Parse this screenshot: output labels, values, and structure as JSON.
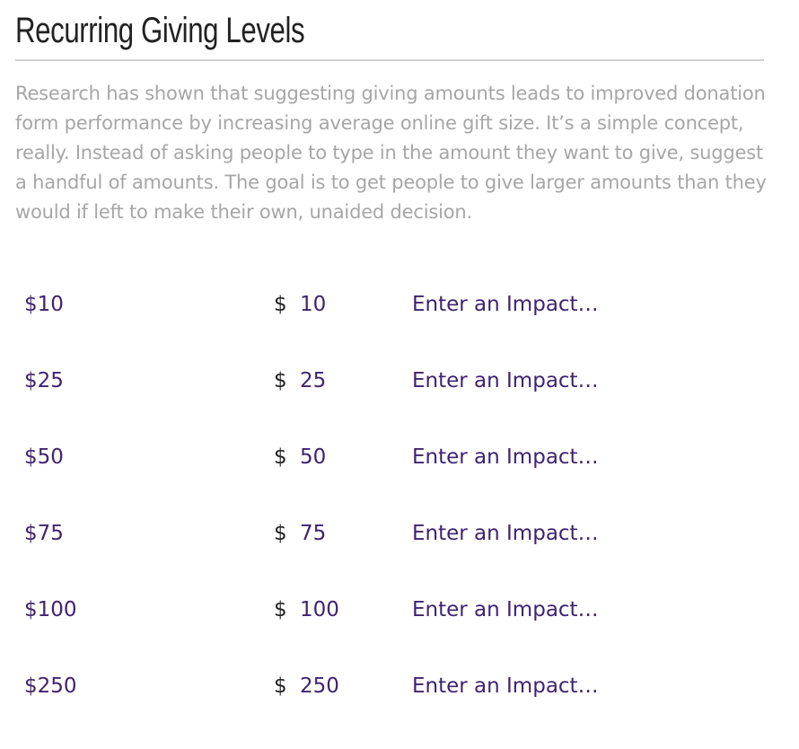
{
  "header": {
    "title": "Recurring Giving Levels"
  },
  "description": "Research has shown that suggesting giving amounts leads to improved donation form performance by increasing average online gift size. It’s a simple concept, really. Instead of asking people to type in the amount they want to give, suggest a handful of amounts. The goal is to get people to give larger amounts than they would if left to make their own, unaided decision.",
  "currency_symbol": "$",
  "impact_placeholder": "Enter an Impact…",
  "levels": [
    {
      "label": "$10",
      "amount": 10
    },
    {
      "label": "$25",
      "amount": 25
    },
    {
      "label": "$50",
      "amount": 50
    },
    {
      "label": "$75",
      "amount": 75
    },
    {
      "label": "$100",
      "amount": 100
    },
    {
      "label": "$250",
      "amount": 250
    }
  ]
}
